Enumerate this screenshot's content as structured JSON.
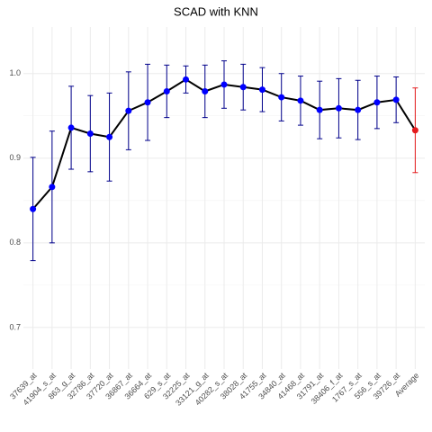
{
  "chart_data": {
    "type": "line",
    "title": "SCAD with KNN",
    "categories": [
      "37639_at",
      "41904_s_at",
      "863_g_at",
      "32786_at",
      "37720_at",
      "36867_at",
      "36664_at",
      "629_s_at",
      "32225_at",
      "33121_g_at",
      "40282_s_at",
      "38028_at",
      "41755_at",
      "34840_at",
      "41468_at",
      "31791_at",
      "38406_f_at",
      "1767_s_at",
      "556_s_at",
      "39726_at",
      "Average"
    ],
    "values": [
      0.84,
      0.866,
      0.936,
      0.929,
      0.925,
      0.956,
      0.966,
      0.979,
      0.993,
      0.979,
      0.987,
      0.984,
      0.981,
      0.972,
      0.968,
      0.957,
      0.959,
      0.957,
      0.966,
      0.969,
      0.933
    ],
    "errors": [
      0.061,
      0.066,
      0.049,
      0.045,
      0.052,
      0.046,
      0.045,
      0.031,
      0.016,
      0.031,
      0.028,
      0.027,
      0.026,
      0.028,
      0.029,
      0.034,
      0.035,
      0.035,
      0.031,
      0.027,
      0.05
    ],
    "point_colors": [
      "#0000ff",
      "#0000ff",
      "#0000ff",
      "#0000ff",
      "#0000ff",
      "#0000ff",
      "#0000ff",
      "#0000ff",
      "#0000ff",
      "#0000ff",
      "#0000ff",
      "#0000ff",
      "#0000ff",
      "#0000ff",
      "#0000ff",
      "#0000ff",
      "#0000ff",
      "#0000ff",
      "#0000ff",
      "#0000ff",
      "#e41a1c"
    ],
    "error_colors": [
      "#00008b",
      "#00008b",
      "#00008b",
      "#00008b",
      "#00008b",
      "#00008b",
      "#00008b",
      "#00008b",
      "#00008b",
      "#00008b",
      "#00008b",
      "#00008b",
      "#00008b",
      "#00008b",
      "#00008b",
      "#00008b",
      "#00008b",
      "#00008b",
      "#00008b",
      "#00008b",
      "#e41a1c"
    ],
    "line_color": "#000000",
    "ylim": [
      0.651,
      1.055
    ],
    "yticks": [
      0.7,
      0.8,
      0.9,
      {
        "value": 1,
        "label": "1.0"
      }
    ],
    "y_minor_ticks": [
      0.75,
      0.85,
      0.95
    ],
    "grid": true
  }
}
